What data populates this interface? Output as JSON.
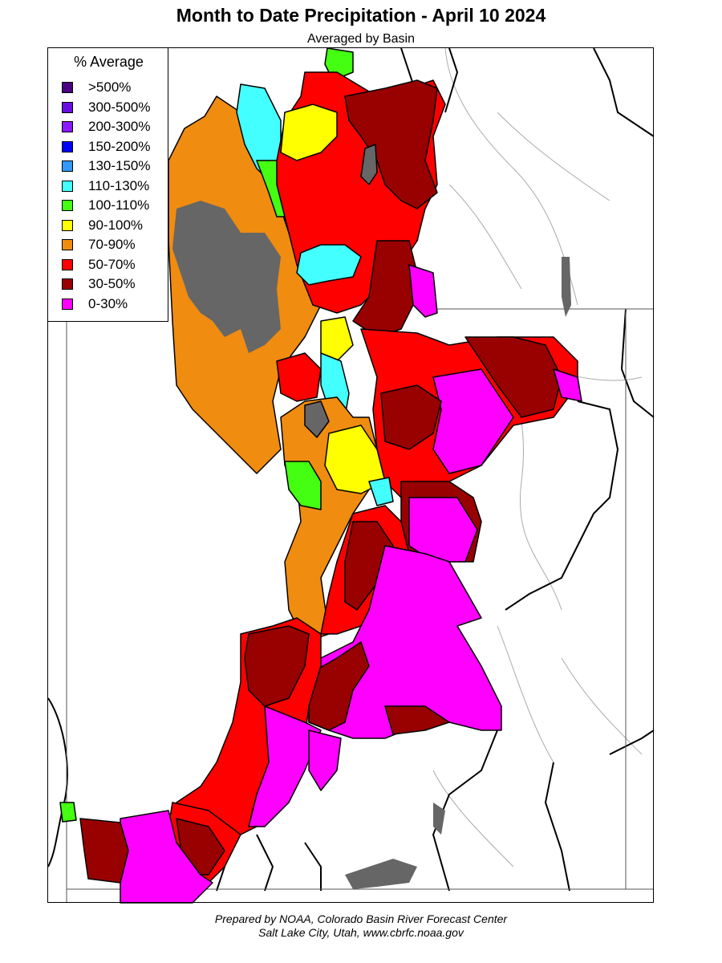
{
  "title": "Month to Date Precipitation - April 10 2024",
  "subtitle": "Averaged by Basin",
  "legend": {
    "title": "% Average",
    "items": [
      {
        "label": ">500%",
        "color": "#4b0082"
      },
      {
        "label": "300-500%",
        "color": "#6a0ee0"
      },
      {
        "label": "200-300%",
        "color": "#8a1aff"
      },
      {
        "label": "150-200%",
        "color": "#0000ff"
      },
      {
        "label": "130-150%",
        "color": "#3399ff"
      },
      {
        "label": "110-130%",
        "color": "#44ffff"
      },
      {
        "label": "100-110%",
        "color": "#44ff11"
      },
      {
        "label": "90-100%",
        "color": "#ffff00"
      },
      {
        "label": "70-90%",
        "color": "#f08c10"
      },
      {
        "label": "50-70%",
        "color": "#ff0000"
      },
      {
        "label": "30-50%",
        "color": "#990000"
      },
      {
        "label": "0-30%",
        "color": "#ff00ff"
      }
    ]
  },
  "colors": {
    "no_data": "#666666",
    "state_boundary": "#000000",
    "river": "#aaaaaa"
  },
  "footer": {
    "line1": "Prepared by NOAA, Colorado Basin River Forecast Center",
    "line2": "Salt Lake City, Utah, www.cbrfc.noaa.gov"
  }
}
